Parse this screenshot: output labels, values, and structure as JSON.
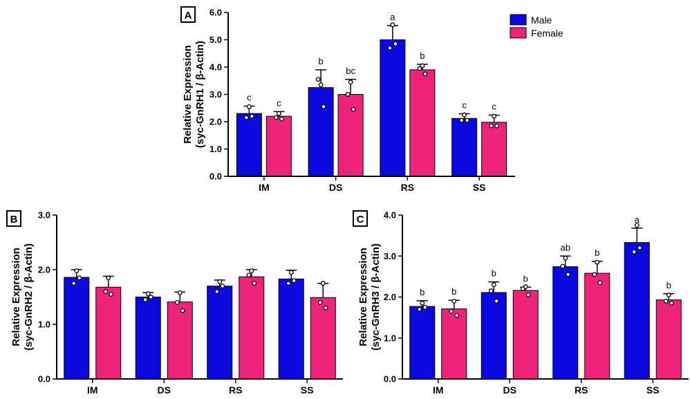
{
  "legend": {
    "items": [
      {
        "label": "Male",
        "color": "#0b08e0"
      },
      {
        "label": "Female",
        "color": "#f0237a"
      }
    ]
  },
  "chart_data": [
    {
      "type": "bar",
      "panel": "A",
      "ylabel_line1": "Relative Expression",
      "ylabel_line2": "(syc-GnRH1 / β-Actin)",
      "ylim": [
        0,
        6
      ],
      "yticks": [
        "0.0",
        "1.0",
        "2.0",
        "3.0",
        "4.0",
        "5.0",
        "6.0"
      ],
      "categories": [
        "IM",
        "DS",
        "RS",
        "SS"
      ],
      "series": [
        {
          "name": "Male",
          "color": "#0b08e0",
          "values": [
            2.3,
            3.25,
            5.0,
            2.12
          ],
          "errors": [
            0.27,
            0.65,
            0.52,
            0.17
          ],
          "letters": [
            "c",
            "b",
            "a",
            "c"
          ],
          "points": [
            [
              2.55,
              2.15,
              2.2
            ],
            [
              3.35,
              3.55,
              2.55
            ],
            [
              5.55,
              4.7,
              4.85
            ],
            [
              2.25,
              2.05,
              2.05
            ]
          ]
        },
        {
          "name": "Female",
          "color": "#f0237a",
          "values": [
            2.2,
            3.0,
            3.9,
            1.98
          ],
          "errors": [
            0.17,
            0.55,
            0.2,
            0.26
          ],
          "letters": [
            "c",
            "bc",
            "b",
            "c"
          ],
          "points": [
            [
              2.3,
              2.15,
              2.1
            ],
            [
              3.45,
              3.0,
              2.45
            ],
            [
              4.05,
              3.95,
              3.75
            ],
            [
              2.2,
              1.85,
              1.85
            ]
          ]
        }
      ]
    },
    {
      "type": "bar",
      "panel": "B",
      "ylabel_line1": "Relative Expression",
      "ylabel_line2": "(syc-GnRH2 / β-Actin)",
      "ylim": [
        0,
        3
      ],
      "yticks": [
        "0.0",
        "1.0",
        "2.0",
        "3.0"
      ],
      "categories": [
        "IM",
        "DS",
        "RS",
        "SS"
      ],
      "series": [
        {
          "name": "Male",
          "color": "#0b08e0",
          "values": [
            1.86,
            1.5,
            1.7,
            1.83
          ],
          "errors": [
            0.14,
            0.08,
            0.11,
            0.16
          ],
          "letters": [],
          "points": [
            [
              1.98,
              1.75,
              1.85
            ],
            [
              1.56,
              1.45,
              1.5
            ],
            [
              1.78,
              1.6,
              1.7
            ],
            [
              1.95,
              1.75,
              1.8
            ]
          ]
        },
        {
          "name": "Female",
          "color": "#f0237a",
          "values": [
            1.68,
            1.41,
            1.87,
            1.49
          ],
          "errors": [
            0.2,
            0.18,
            0.13,
            0.26
          ],
          "letters": [],
          "points": [
            [
              1.85,
              1.6,
              1.55
            ],
            [
              1.58,
              1.4,
              1.25
            ],
            [
              1.98,
              1.9,
              1.75
            ],
            [
              1.75,
              1.4,
              1.3
            ]
          ]
        }
      ]
    },
    {
      "type": "bar",
      "panel": "C",
      "ylabel_line1": "Relative Expression",
      "ylabel_line2": "(syc-GnRH3 / β-Actin)",
      "ylim": [
        0,
        4
      ],
      "yticks": [
        "0.0",
        "1.0",
        "2.0",
        "3.0",
        "4.0"
      ],
      "categories": [
        "IM",
        "DS",
        "RS",
        "SS"
      ],
      "series": [
        {
          "name": "Male",
          "color": "#0b08e0",
          "values": [
            1.77,
            2.11,
            2.74,
            3.33
          ],
          "errors": [
            0.14,
            0.26,
            0.26,
            0.35
          ],
          "letters": [
            "b",
            "b",
            "ab",
            "a"
          ],
          "points": [
            [
              1.85,
              1.7,
              1.75
            ],
            [
              2.3,
              2.15,
              1.9
            ],
            [
              2.95,
              2.75,
              2.55
            ],
            [
              3.75,
              3.1,
              3.2
            ]
          ]
        },
        {
          "name": "Female",
          "color": "#f0237a",
          "values": [
            1.71,
            2.16,
            2.58,
            1.93
          ],
          "errors": [
            0.21,
            0.08,
            0.29,
            0.15
          ],
          "letters": [
            "b",
            "b",
            "b",
            "b"
          ],
          "points": [
            [
              1.9,
              1.65,
              1.55
            ],
            [
              2.25,
              2.2,
              2.05
            ],
            [
              2.85,
              2.55,
              2.35
            ],
            [
              2.05,
              1.9,
              1.85
            ]
          ]
        }
      ]
    }
  ]
}
